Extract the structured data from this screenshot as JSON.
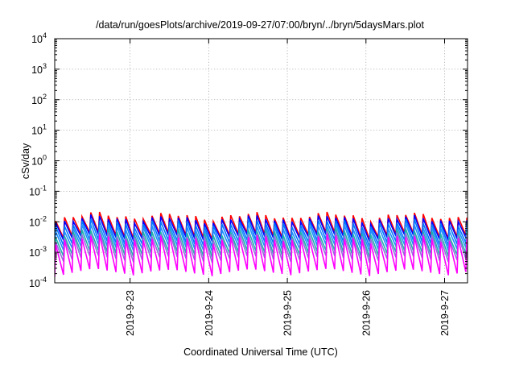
{
  "chart_data": {
    "type": "line",
    "title": "/data/run/goesPlots/archive/2019-09-27/07:00/bryn/../bryn/5daysMars.plot",
    "xlabel": "Coordinated Universal Time (UTC)",
    "ylabel": "cSv/day",
    "y_scale": "log",
    "ylim": [
      0.0001,
      10000
    ],
    "xlim": [
      "2019-09-22T01:00",
      "2019-09-27T07:00"
    ],
    "grid": true,
    "legend": "none",
    "x_ticks": [
      {
        "value": "2019-09-23T00:00",
        "label": "2019-9-23"
      },
      {
        "value": "2019-09-24T00:00",
        "label": "2019-9-24"
      },
      {
        "value": "2019-09-25T00:00",
        "label": "2019-9-25"
      },
      {
        "value": "2019-09-26T00:00",
        "label": "2019-9-26"
      },
      {
        "value": "2019-09-27T00:00",
        "label": "2019-9-27"
      }
    ],
    "y_ticks": [
      {
        "value": 0.0001,
        "base": "10",
        "exp": "-4"
      },
      {
        "value": 0.001,
        "base": "10",
        "exp": "-3"
      },
      {
        "value": 0.01,
        "base": "10",
        "exp": "-2"
      },
      {
        "value": 0.1,
        "base": "10",
        "exp": "-1"
      },
      {
        "value": 1,
        "base": "10",
        "exp": "0"
      },
      {
        "value": 10,
        "base": "10",
        "exp": "1"
      },
      {
        "value": 100,
        "base": "10",
        "exp": "2"
      },
      {
        "value": 1000,
        "base": "10",
        "exp": "3"
      },
      {
        "value": 10000,
        "base": "10",
        "exp": "4"
      }
    ],
    "sawtooth": {
      "period_hours": 2.67,
      "start": "2019-09-22T01:00",
      "envelope_hours": [
        0,
        6,
        12,
        18,
        24,
        30,
        36,
        42,
        48,
        54,
        60,
        66,
        72,
        78,
        84,
        90,
        96,
        102,
        108,
        114,
        120,
        126
      ],
      "envelope_factor": [
        0.7,
        1.0,
        1.35,
        1.05,
        0.8,
        1.1,
        1.25,
        0.95,
        0.75,
        1.05,
        1.3,
        1.0,
        0.8,
        1.1,
        1.35,
        1.0,
        0.75,
        1.05,
        1.3,
        1.0,
        0.8,
        1.05
      ]
    },
    "series": [
      {
        "color": "#ff0000",
        "peak": 0.015,
        "trough": 0.0035
      },
      {
        "color": "#0000ff",
        "peak": 0.012,
        "trough": 0.003
      },
      {
        "color": "#0077ff",
        "peak": 0.009,
        "trough": 0.002
      },
      {
        "color": "#1e90ff",
        "peak": 0.0065,
        "trough": 0.0014
      },
      {
        "color": "#20b2aa",
        "peak": 0.0045,
        "trough": 0.0009
      },
      {
        "color": "#9370db",
        "peak": 0.0035,
        "trough": 0.0006
      },
      {
        "color": "#ff00ff",
        "peak": 0.0028,
        "trough": 0.00022
      }
    ]
  }
}
